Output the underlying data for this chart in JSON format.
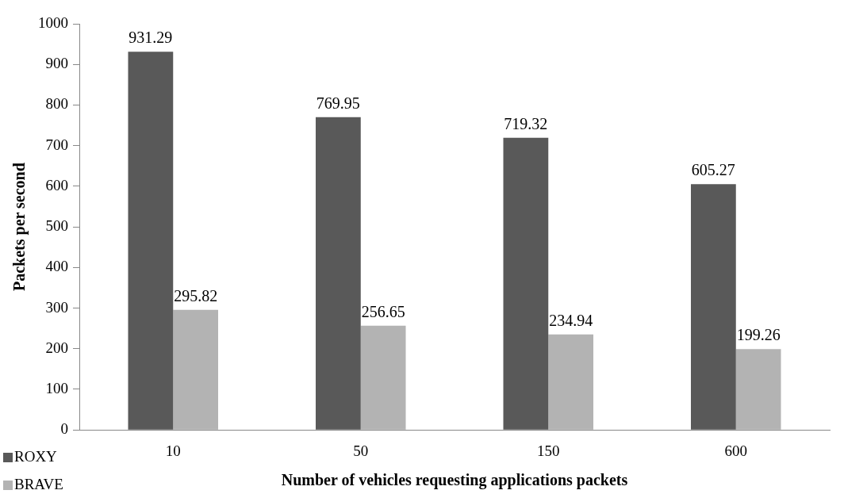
{
  "chart_data": {
    "type": "bar",
    "xlabel": "Number of vehicles requesting applications packets",
    "ylabel": "Packets per second",
    "categories": [
      "10",
      "50",
      "150",
      "600"
    ],
    "series": [
      {
        "name": "ROXY",
        "color": "#595959",
        "values": [
          931.29,
          769.95,
          719.32,
          605.27
        ]
      },
      {
        "name": "BRAVE",
        "color": "#b3b3b3",
        "values": [
          295.82,
          256.65,
          234.94,
          199.26
        ]
      }
    ],
    "ylim": [
      0,
      1000
    ],
    "yticks": [
      0,
      100,
      200,
      300,
      400,
      500,
      600,
      700,
      800,
      900,
      1000
    ],
    "grid": false,
    "legend": "bottom left",
    "data_labels": true
  }
}
